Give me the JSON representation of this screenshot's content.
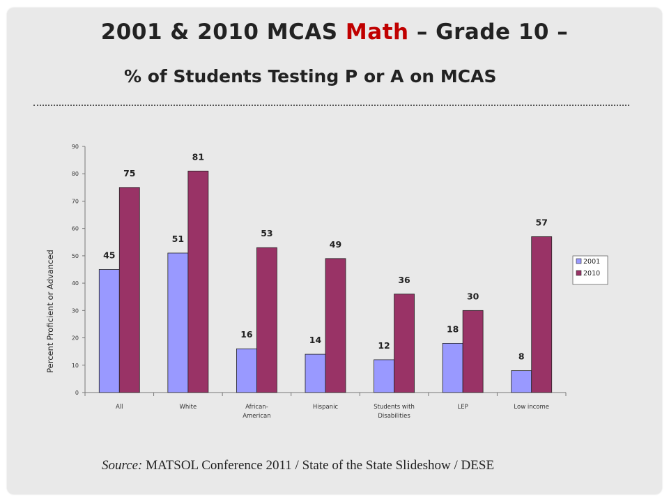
{
  "slide": {
    "title_prefix": "2001 & 2010 MCAS",
    "title_accent": "Math",
    "title_suffix": "– Grade 10 –",
    "subtitle": "% of Students Testing P or A on MCAS",
    "source_label": "Source:",
    "source_text": "MATSOL Conference 2011 / State of the State Slideshow / DESE"
  },
  "colors": {
    "series_2001": "#9999ff",
    "series_2010": "#993366",
    "title_accent": "#c00000"
  },
  "chart_data": {
    "type": "bar",
    "categories": [
      [
        "All"
      ],
      [
        "White"
      ],
      [
        "African-",
        "American"
      ],
      [
        "Hispanic"
      ],
      [
        "Students with",
        "Disabilities"
      ],
      [
        "LEP"
      ],
      [
        "Low income"
      ]
    ],
    "series": [
      {
        "name": "2001",
        "values": [
          45,
          51,
          16,
          14,
          12,
          18,
          8
        ]
      },
      {
        "name": "2010",
        "values": [
          75,
          81,
          53,
          49,
          36,
          30,
          57
        ]
      }
    ],
    "ylabel": "Percent Proficient or Advanced",
    "xlabel": "",
    "ylim": [
      0,
      90
    ],
    "yticks": [
      0,
      10,
      20,
      30,
      40,
      50,
      60,
      70,
      80,
      90
    ],
    "grid": false,
    "legend": "right",
    "data_labels": true
  }
}
